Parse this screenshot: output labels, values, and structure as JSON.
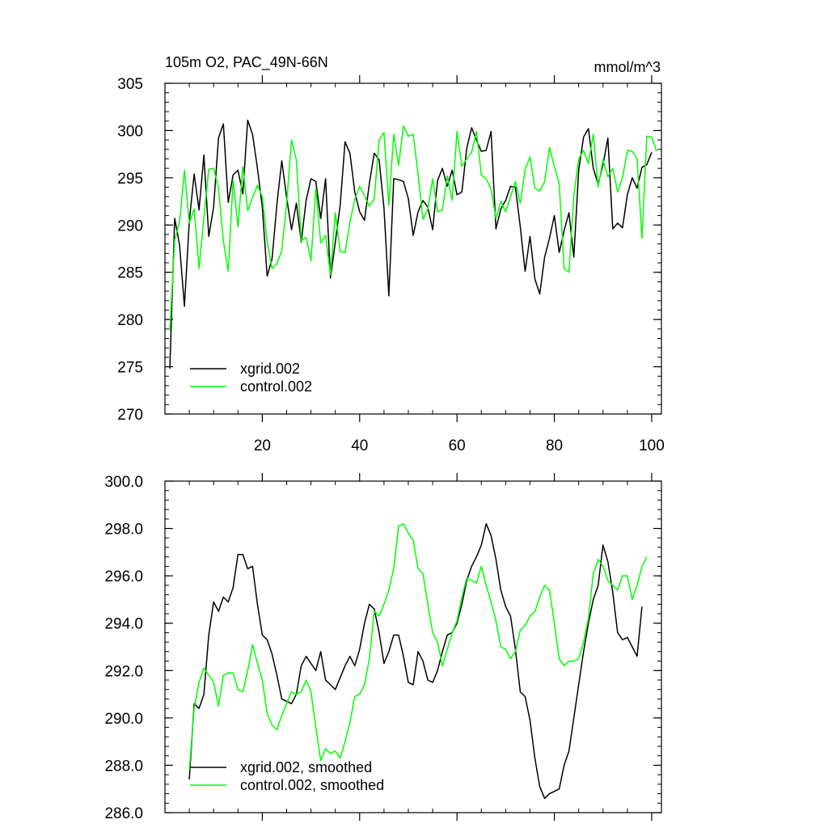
{
  "chart_data": [
    {
      "type": "line",
      "title": "105m O2, PAC_49N-66N",
      "units": "mmol/m^3",
      "xlim": [
        0,
        102
      ],
      "ylim": [
        270,
        305
      ],
      "xticks": [
        20,
        40,
        60,
        80,
        100
      ],
      "yticks": [
        270,
        275,
        280,
        285,
        290,
        295,
        300,
        305
      ],
      "ytick_decimals": 0,
      "x_labels_shown": true,
      "legend_location": "bottom-left",
      "series": [
        {
          "name": "xgrid.002",
          "color": "#000000",
          "x_start": 1,
          "values": [
            274.8,
            290.7,
            287.9,
            281.4,
            290.4,
            295.4,
            291.6,
            297.4,
            288.8,
            291.9,
            299.2,
            300.7,
            292.4,
            295.3,
            295.8,
            293.3,
            301.1,
            299.6,
            296.0,
            291.9,
            284.6,
            286.4,
            292.2,
            296.8,
            292.9,
            289.5,
            292.3,
            288.2,
            292.6,
            294.9,
            294.6,
            290.7,
            294.9,
            284.4,
            288.2,
            292.1,
            298.8,
            297.6,
            293.5,
            291.4,
            290.5,
            294.4,
            297.6,
            296.9,
            291.8,
            282.5,
            294.9,
            294.8,
            294.6,
            292.8,
            288.9,
            291.4,
            292.6,
            291.9,
            289.5,
            294.7,
            296.0,
            294.1,
            295.8,
            293.2,
            293.5,
            298.1,
            300.3,
            299.0,
            297.8,
            297.9,
            299.9,
            289.6,
            291.7,
            292.6,
            294.1,
            294.0,
            289.8,
            285.1,
            288.8,
            284.3,
            282.7,
            286.6,
            288.6,
            291.0,
            287.1,
            289.4,
            291.3,
            286.6,
            295.8,
            299.3,
            300.2,
            296.0,
            294.3,
            296.4,
            299.2,
            289.6,
            290.2,
            289.7,
            293.2,
            295.0,
            293.9,
            296.1,
            296.4,
            297.7
          ]
        },
        {
          "name": "control.002",
          "color": "#00ff00",
          "x_start": 1,
          "values": [
            278.8,
            288.4,
            290.3,
            295.8,
            290.2,
            291.7,
            285.4,
            290.8,
            295.9,
            296.0,
            293.9,
            288.3,
            285.1,
            294.8,
            289.8,
            296.2,
            291.5,
            292.9,
            294.2,
            293.0,
            288.2,
            285.4,
            285.9,
            287.3,
            292.3,
            299.0,
            296.9,
            288.3,
            288.7,
            286.2,
            293.9,
            288.1,
            288.9,
            284.7,
            291.3,
            287.2,
            287.1,
            290.3,
            292.7,
            294.1,
            293.1,
            292.0,
            292.8,
            299.0,
            299.8,
            292.1,
            299.6,
            296.3,
            300.5,
            299.4,
            299.6,
            295.4,
            290.6,
            291.7,
            294.9,
            291.4,
            291.6,
            295.2,
            292.6,
            299.9,
            296.2,
            297.0,
            297.7,
            299.9,
            295.3,
            294.9,
            293.8,
            290.7,
            292.5,
            291.4,
            293.0,
            294.6,
            292.3,
            295.9,
            297.2,
            293.9,
            293.6,
            294.6,
            298.2,
            296.2,
            294.4,
            285.4,
            285.0,
            293.1,
            297.0,
            297.9,
            296.5,
            299.6,
            294.0,
            296.9,
            295.1,
            296.0,
            293.5,
            295.0,
            297.9,
            297.8,
            297.0,
            288.6,
            299.4,
            299.3,
            297.8
          ]
        }
      ]
    },
    {
      "type": "line",
      "title": "",
      "xlim": [
        0,
        102
      ],
      "ylim": [
        286,
        300
      ],
      "xticks": [
        20,
        40,
        60,
        80,
        100
      ],
      "yticks": [
        286,
        288,
        290,
        292,
        294,
        296,
        298,
        300
      ],
      "ytick_decimals": 1,
      "x_labels_shown": false,
      "legend_location": "bottom-left",
      "series": [
        {
          "name": "xgrid.002, smoothed",
          "color": "#000000",
          "x_start": 5,
          "values": [
            287.4,
            290.6,
            290.4,
            291.0,
            293.5,
            294.9,
            294.5,
            295.1,
            294.9,
            295.5,
            296.9,
            296.9,
            296.3,
            296.4,
            294.8,
            293.5,
            293.3,
            292.7,
            291.8,
            290.8,
            290.7,
            290.6,
            291.0,
            292.2,
            292.6,
            292.3,
            292.0,
            292.8,
            291.6,
            291.4,
            291.2,
            291.7,
            292.2,
            292.6,
            292.2,
            292.9,
            294.0,
            294.8,
            294.6,
            293.6,
            292.3,
            292.8,
            293.5,
            293.5,
            292.6,
            291.5,
            291.4,
            292.8,
            292.4,
            291.6,
            291.5,
            292.0,
            292.8,
            293.5,
            293.6,
            294.0,
            294.8,
            295.8,
            296.4,
            296.8,
            297.3,
            298.2,
            297.7,
            296.7,
            295.4,
            294.7,
            294.3,
            292.9,
            291.1,
            290.9,
            289.9,
            288.3,
            287.1,
            286.6,
            286.8,
            286.9,
            287.0,
            288.0,
            288.6,
            290.0,
            291.4,
            292.8,
            294.0,
            295.0,
            295.6,
            297.3,
            296.6,
            295.3,
            293.6,
            293.3,
            293.4,
            293.0,
            292.6,
            294.7
          ]
        },
        {
          "name": "control.002, smoothed",
          "color": "#00ff00",
          "x_start": 5,
          "values": [
            287.8,
            290.4,
            291.5,
            292.1,
            291.8,
            291.5,
            290.5,
            291.8,
            291.9,
            291.9,
            291.2,
            291.1,
            292.0,
            293.1,
            292.3,
            291.6,
            290.2,
            289.7,
            289.5,
            290.1,
            290.6,
            291.1,
            291.0,
            291.1,
            291.6,
            291.1,
            289.6,
            288.2,
            288.7,
            288.5,
            288.6,
            288.3,
            289.0,
            289.8,
            290.9,
            291.0,
            291.4,
            292.5,
            294.5,
            294.3,
            294.8,
            295.4,
            296.3,
            298.1,
            298.2,
            297.8,
            297.5,
            296.3,
            296.1,
            294.8,
            293.6,
            293.2,
            292.2,
            292.9,
            293.6,
            294.1,
            295.1,
            295.9,
            295.8,
            295.7,
            296.4,
            295.6,
            294.9,
            294.1,
            293.0,
            292.9,
            292.5,
            292.8,
            293.7,
            293.9,
            294.3,
            294.5,
            295.1,
            295.6,
            295.4,
            294.0,
            292.5,
            292.2,
            292.4,
            292.4,
            292.5,
            293.2,
            294.2,
            296.1,
            296.7,
            296.4,
            295.8,
            295.6,
            295.4,
            296.0,
            296.0,
            295.0,
            295.6,
            296.4,
            296.8
          ]
        }
      ]
    }
  ]
}
